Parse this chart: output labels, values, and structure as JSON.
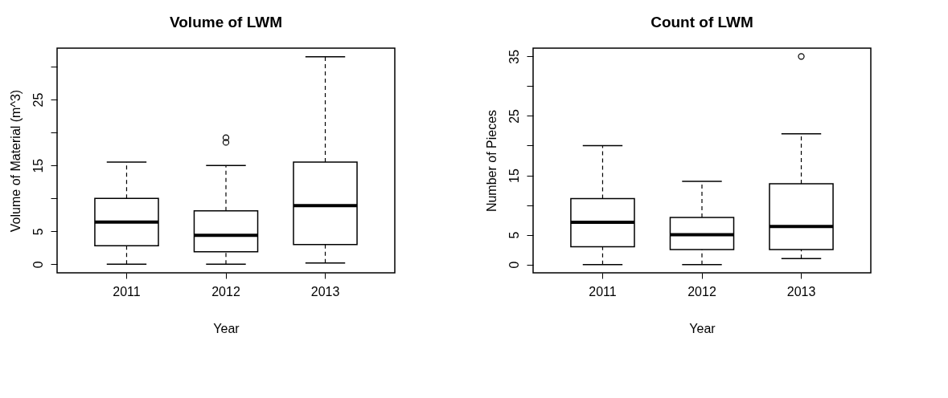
{
  "chart_data": [
    {
      "type": "box",
      "title": "Volume of LWM",
      "xlabel": "Year",
      "ylabel": "Volume of Material (m^3)",
      "categories": [
        "2011",
        "2012",
        "2013"
      ],
      "boxes": [
        {
          "low": 0,
          "q1": 2.8,
          "median": 6.4,
          "q3": 10.0,
          "high": 15.5
        },
        {
          "low": 0,
          "q1": 1.9,
          "median": 4.4,
          "q3": 8.1,
          "high": 15.0,
          "outliers": [
            18.5,
            19.2
          ]
        },
        {
          "low": 0.2,
          "q1": 3.0,
          "median": 8.9,
          "q3": 15.5,
          "high": 31.5
        }
      ],
      "ylim": [
        -1.3,
        32.8
      ],
      "yticks": [
        0,
        5,
        {
          "value": 10,
          "label": null
        },
        15,
        {
          "value": 20,
          "label": null
        },
        25,
        {
          "value": 30,
          "label": null
        }
      ],
      "grid": false
    },
    {
      "type": "box",
      "title": "Count of LWM",
      "xlabel": "Year",
      "ylabel": "Number of Pieces",
      "categories": [
        "2011",
        "2012",
        "2013"
      ],
      "boxes": [
        {
          "low": 0,
          "q1": 3.0,
          "median": 7.1,
          "q3": 11.1,
          "high": 20.0
        },
        {
          "low": 0,
          "q1": 2.5,
          "median": 5.0,
          "q3": 7.9,
          "high": 14.0
        },
        {
          "low": 1.0,
          "q1": 2.5,
          "median": 6.4,
          "q3": 13.6,
          "high": 22.0,
          "outliers": [
            35
          ]
        }
      ],
      "ylim": [
        -1.4,
        36.4
      ],
      "yticks": [
        0,
        5,
        {
          "value": 10,
          "label": null
        },
        15,
        {
          "value": 20,
          "label": null
        },
        25,
        {
          "value": 30,
          "label": null
        },
        35
      ],
      "grid": false
    }
  ]
}
